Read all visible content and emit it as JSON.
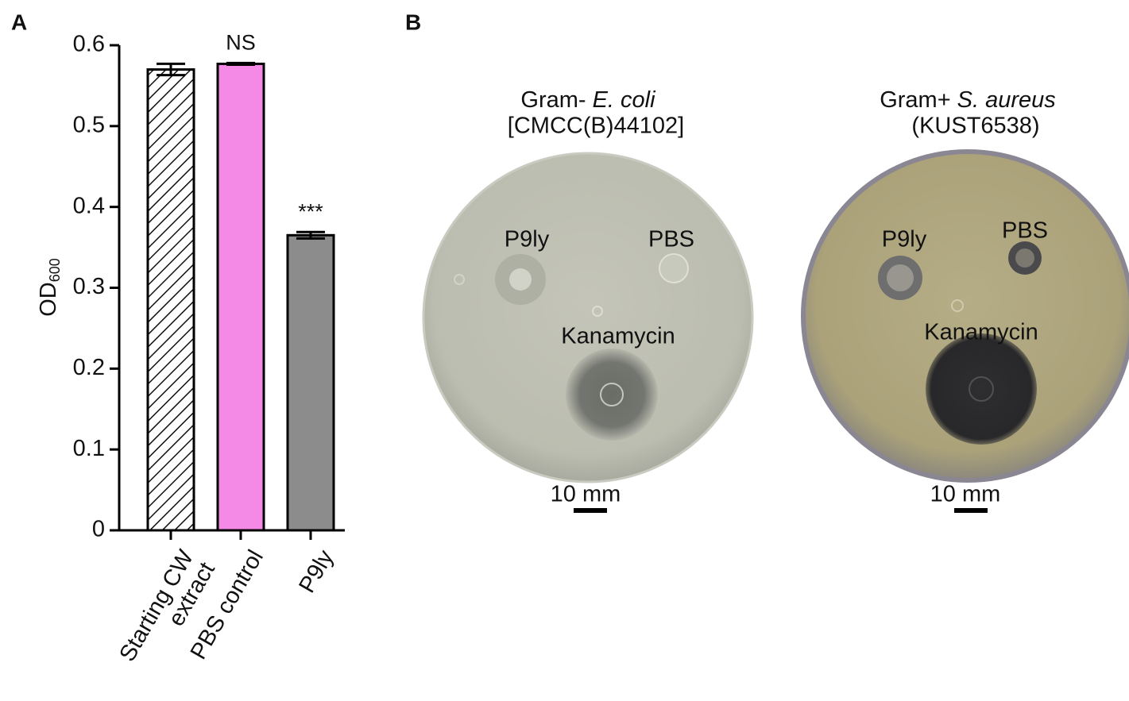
{
  "panel_labels": [
    "A",
    "B"
  ],
  "chart_data": {
    "type": "bar",
    "ylabel": "OD",
    "ylabel_subscript": "600",
    "categories": [
      "Starting CW\nextract",
      "PBS control",
      "P9ly"
    ],
    "values": [
      0.57,
      0.577,
      0.365
    ],
    "errors": [
      0.007,
      0.001,
      0.004
    ],
    "colors": [
      "#ffffff",
      "#f58ae6",
      "#8c8c8c"
    ],
    "hatch": [
      true,
      false,
      false
    ],
    "value_annotations": [
      null,
      "NS",
      "***"
    ],
    "ylim": [
      0,
      0.6
    ],
    "yticks": [
      0,
      0.1,
      0.2,
      0.3,
      0.4,
      0.5,
      0.6
    ],
    "grid": false
  },
  "plates": [
    {
      "title_prefix": "Gram-",
      "title_species": "E. coli",
      "strain": "[CMCC(B)44102]",
      "spot_labels": [
        "P9ly",
        "PBS",
        "Kanamycin"
      ],
      "scale_bar": "10 mm"
    },
    {
      "title_prefix": "Gram+",
      "title_species": "S. aureus",
      "strain": "(KUST6538)",
      "spot_labels": [
        "P9ly",
        "PBS",
        "Kanamycin"
      ],
      "scale_bar": "10 mm"
    }
  ]
}
